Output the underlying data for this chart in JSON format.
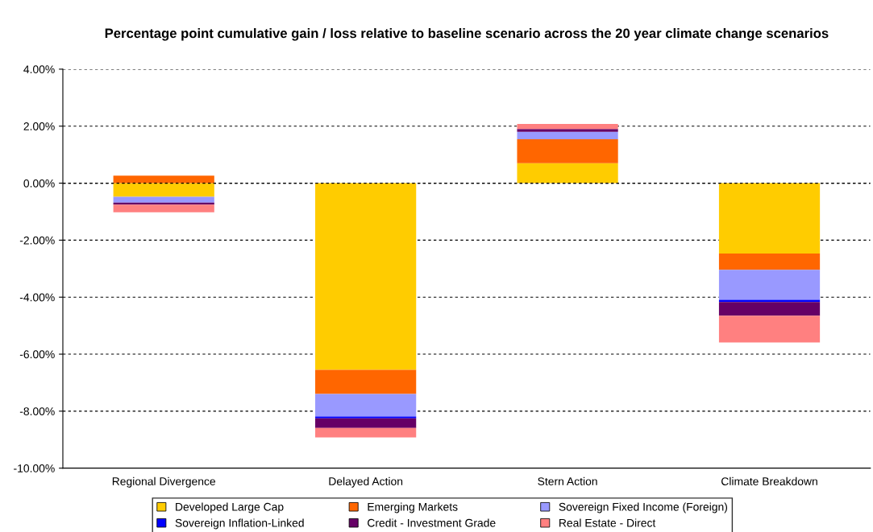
{
  "chart_data": {
    "type": "bar",
    "stacked": true,
    "title": "Percentage point cumulative gain / loss relative to baseline scenario across the 20 year climate change scenarios",
    "categories": [
      "Regional Divergence",
      "Delayed Action",
      "Stern Action",
      "Climate Breakdown"
    ],
    "series": [
      {
        "name": "Developed Large Cap",
        "color": "#ffcc00",
        "values": [
          -0.48,
          -6.55,
          0.7,
          -2.47
        ]
      },
      {
        "name": "Emerging Markets",
        "color": "#ff6600",
        "values": [
          0.26,
          -0.85,
          0.84,
          -0.57
        ]
      },
      {
        "name": "Sovereign Fixed Income (Foreign)",
        "color": "#9999ff",
        "values": [
          -0.2,
          -0.79,
          0.26,
          -1.05
        ]
      },
      {
        "name": "Sovereign Inflation-Linked",
        "color": "#0000ff",
        "values": [
          0,
          -0.06,
          0,
          -0.08
        ]
      },
      {
        "name": "Credit - Investment Grade",
        "color": "#660066",
        "values": [
          -0.07,
          -0.34,
          0.1,
          -0.48
        ]
      },
      {
        "name": "Real Estate - Direct",
        "color": "#ff8080",
        "values": [
          -0.27,
          -0.33,
          0.18,
          -0.94
        ]
      }
    ],
    "ylim": [
      -10,
      4
    ],
    "yticks": [
      {
        "value": -10,
        "label": "-10.00%"
      },
      {
        "value": -8,
        "label": "-8.00%"
      },
      {
        "value": -6,
        "label": "-6.00%"
      },
      {
        "value": -4,
        "label": "-4.00%"
      },
      {
        "value": -2,
        "label": "-2.00%"
      },
      {
        "value": 0,
        "label": "0.00%"
      },
      {
        "value": 2,
        "label": "2.00%"
      },
      {
        "value": 4,
        "label": "4.00%"
      }
    ],
    "grid": "y",
    "legend": "bottom"
  }
}
